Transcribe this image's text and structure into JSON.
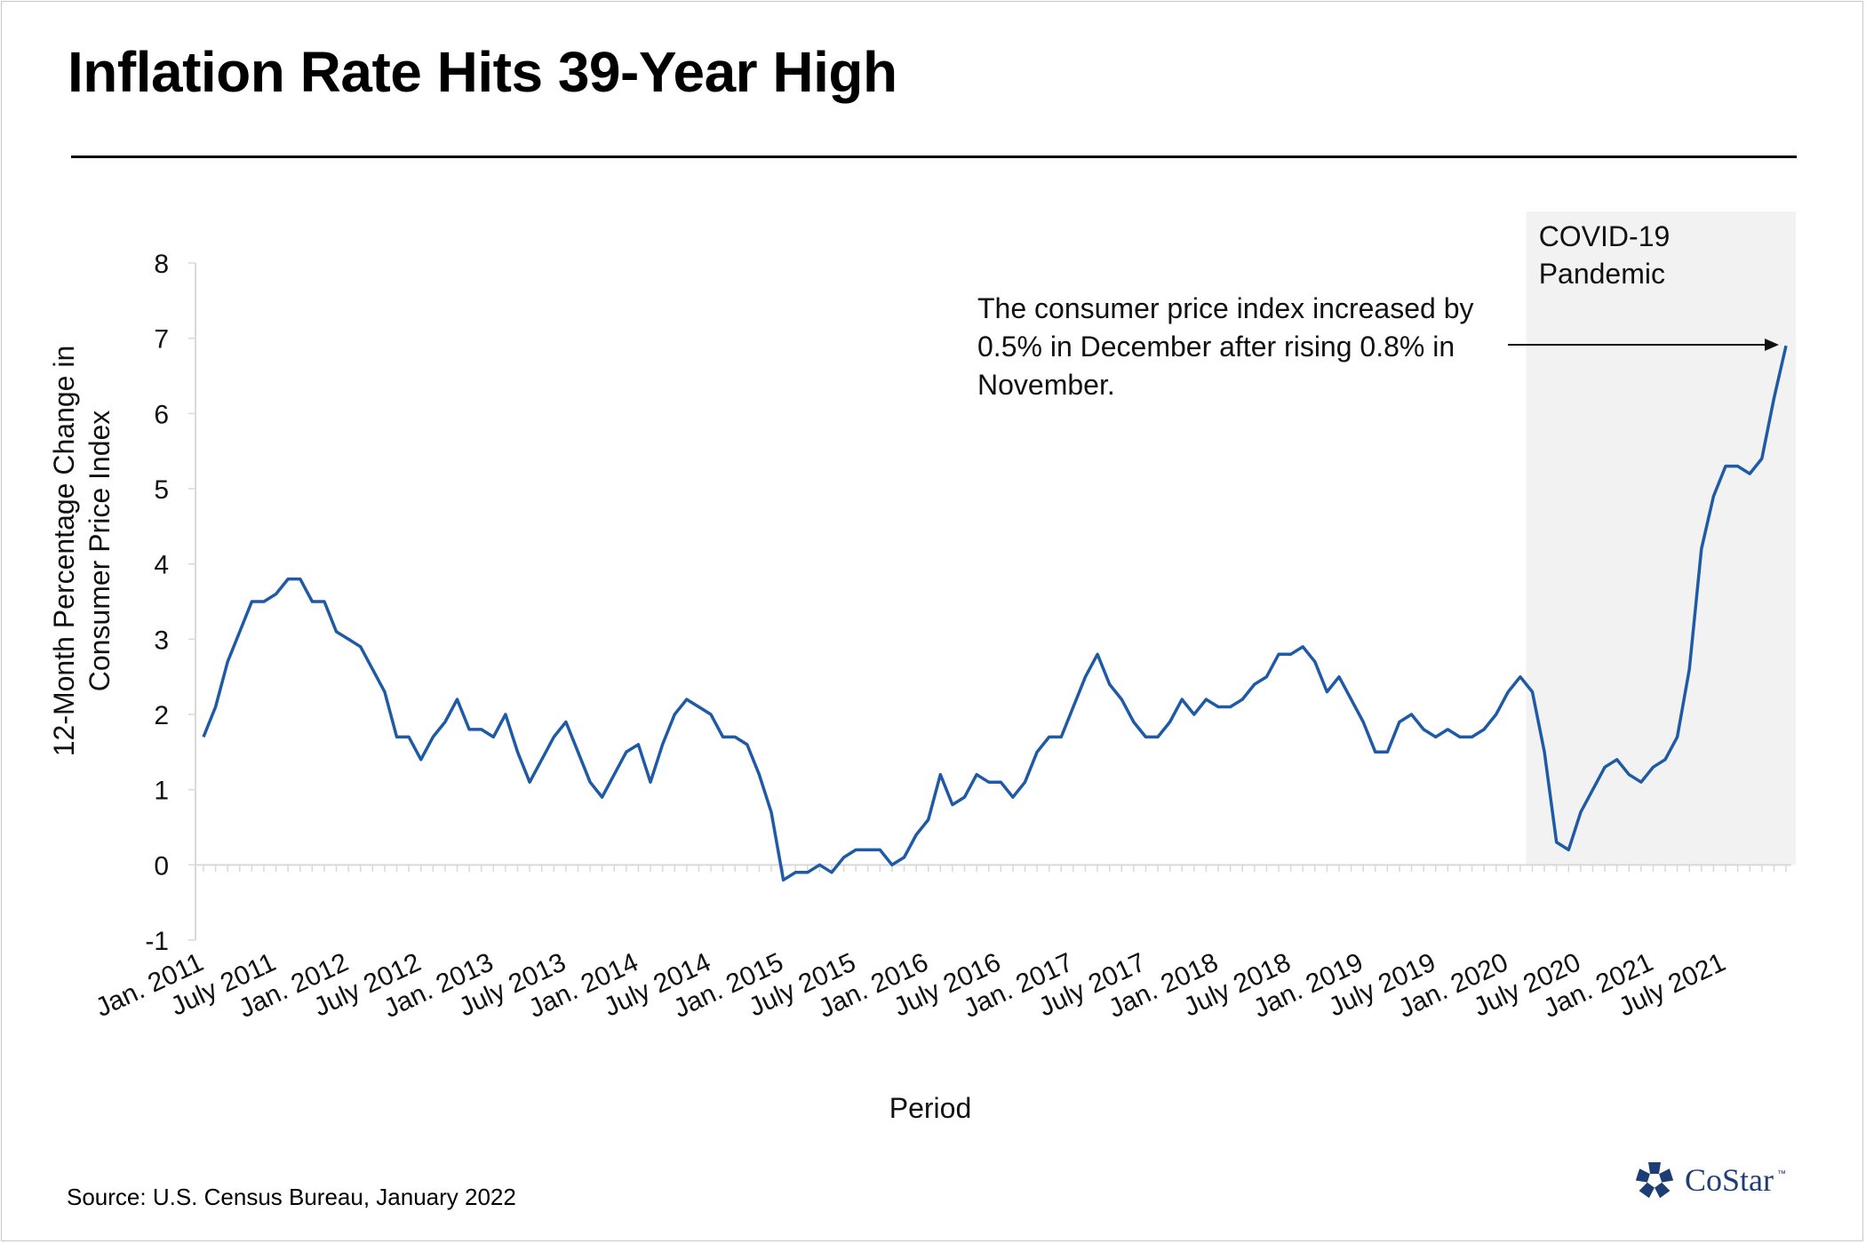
{
  "title": "Inflation Rate Hits 39-Year High",
  "source": "Source: U.S. Census Bureau, January 2022",
  "brand": {
    "name": "CoStar",
    "tm": "™",
    "color": "#1d3e75",
    "icon": "costar-star-icon"
  },
  "chart_data": {
    "type": "line",
    "xlabel": "Period",
    "ylabel": [
      "12-Month Percentage Change in",
      "Consumer Price Index"
    ],
    "ylim": [
      -1,
      8
    ],
    "yticks": [
      -1,
      0,
      1,
      2,
      3,
      4,
      5,
      6,
      7,
      8
    ],
    "grid": false,
    "line_color": "#1f5aa6",
    "categories": [
      "Jan. 2011",
      "Feb. 2011",
      "Mar. 2011",
      "Apr. 2011",
      "May 2011",
      "June 2011",
      "July 2011",
      "Aug. 2011",
      "Sep. 2011",
      "Oct. 2011",
      "Nov. 2011",
      "Dec. 2011",
      "Jan. 2012",
      "Feb. 2012",
      "Mar. 2012",
      "Apr. 2012",
      "May 2012",
      "June 2012",
      "July 2012",
      "Aug. 2012",
      "Sep. 2012",
      "Oct. 2012",
      "Nov. 2012",
      "Dec. 2012",
      "Jan. 2013",
      "Feb. 2013",
      "Mar. 2013",
      "Apr. 2013",
      "May 2013",
      "June 2013",
      "July 2013",
      "Aug. 2013",
      "Sep. 2013",
      "Oct. 2013",
      "Nov. 2013",
      "Dec. 2013",
      "Jan. 2014",
      "Feb. 2014",
      "Mar. 2014",
      "Apr. 2014",
      "May 2014",
      "June 2014",
      "July 2014",
      "Aug. 2014",
      "Sep. 2014",
      "Oct. 2014",
      "Nov. 2014",
      "Dec. 2014",
      "Jan. 2015",
      "Feb. 2015",
      "Mar. 2015",
      "Apr. 2015",
      "May 2015",
      "June 2015",
      "July 2015",
      "Aug. 2015",
      "Sep. 2015",
      "Oct. 2015",
      "Nov. 2015",
      "Dec. 2015",
      "Jan. 2016",
      "Feb. 2016",
      "Mar. 2016",
      "Apr. 2016",
      "May 2016",
      "June 2016",
      "July 2016",
      "Aug. 2016",
      "Sep. 2016",
      "Oct. 2016",
      "Nov. 2016",
      "Dec. 2016",
      "Jan. 2017",
      "Feb. 2017",
      "Mar. 2017",
      "Apr. 2017",
      "May 2017",
      "June 2017",
      "July 2017",
      "Aug. 2017",
      "Sep. 2017",
      "Oct. 2017",
      "Nov. 2017",
      "Dec. 2017",
      "Jan. 2018",
      "Feb. 2018",
      "Mar. 2018",
      "Apr. 2018",
      "May 2018",
      "June 2018",
      "July 2018",
      "Aug. 2018",
      "Sep. 2018",
      "Oct. 2018",
      "Nov. 2018",
      "Dec. 2018",
      "Jan. 2019",
      "Feb. 2019",
      "Mar. 2019",
      "Apr. 2019",
      "May 2019",
      "June 2019",
      "July 2019",
      "Aug. 2019",
      "Sep. 2019",
      "Oct. 2019",
      "Nov. 2019",
      "Dec. 2019",
      "Jan. 2020",
      "Feb. 2020",
      "Mar. 2020",
      "Apr. 2020",
      "May 2020",
      "June 2020",
      "July 2020",
      "Aug. 2020",
      "Sep. 2020",
      "Oct. 2020",
      "Nov. 2020",
      "Dec. 2020",
      "Jan. 2021",
      "Feb. 2021",
      "Mar. 2021",
      "Apr. 2021",
      "May 2021",
      "June 2021",
      "July 2021",
      "Aug. 2021",
      "Sep. 2021",
      "Oct. 2021",
      "Nov. 2021",
      "Dec. 2021"
    ],
    "tick_labels": [
      "Jan. 2011",
      "July 2011",
      "Jan. 2012",
      "July 2012",
      "Jan. 2013",
      "July 2013",
      "Jan. 2014",
      "July 2014",
      "Jan. 2015",
      "July 2015",
      "Jan. 2016",
      "July 2016",
      "Jan. 2017",
      "July 2017",
      "Jan. 2018",
      "July 2018",
      "Jan. 2019",
      "July 2019",
      "Jan. 2020",
      "July 2020",
      "Jan. 2021",
      "July 2021"
    ],
    "series": [
      {
        "values": [
          1.7,
          2.1,
          2.7,
          3.1,
          3.5,
          3.5,
          3.6,
          3.8,
          3.8,
          3.5,
          3.5,
          3.1,
          3.0,
          2.9,
          2.6,
          2.3,
          1.7,
          1.7,
          1.4,
          1.7,
          1.9,
          2.2,
          1.8,
          1.8,
          1.7,
          2.0,
          1.5,
          1.1,
          1.4,
          1.7,
          1.9,
          1.5,
          1.1,
          0.9,
          1.2,
          1.5,
          1.6,
          1.1,
          1.6,
          2.0,
          2.2,
          2.1,
          2.0,
          1.7,
          1.7,
          1.6,
          1.2,
          0.7,
          -0.2,
          -0.1,
          -0.1,
          0.0,
          -0.1,
          0.1,
          0.2,
          0.2,
          0.2,
          0.0,
          0.1,
          0.4,
          0.6,
          1.2,
          0.8,
          0.9,
          1.2,
          1.1,
          1.1,
          0.9,
          1.1,
          1.5,
          1.7,
          1.7,
          2.1,
          2.5,
          2.8,
          2.4,
          2.2,
          1.9,
          1.7,
          1.7,
          1.9,
          2.2,
          2.0,
          2.2,
          2.1,
          2.1,
          2.2,
          2.4,
          2.5,
          2.8,
          2.8,
          2.9,
          2.7,
          2.3,
          2.5,
          2.2,
          1.9,
          1.5,
          1.5,
          1.9,
          2.0,
          1.8,
          1.7,
          1.8,
          1.7,
          1.7,
          1.8,
          2.0,
          2.3,
          2.5,
          2.3,
          1.5,
          0.3,
          0.2,
          0.7,
          1.0,
          1.3,
          1.4,
          1.2,
          1.1,
          1.3,
          1.4,
          1.7,
          2.6,
          4.2,
          4.9,
          5.3,
          5.3,
          5.2,
          5.4,
          6.2,
          6.9
        ]
      }
    ],
    "shaded_region": {
      "label": [
        "COVID-19",
        "Pandemic"
      ],
      "start": "Mar. 2020",
      "end": "Dec. 2021",
      "color": "#f2f2f2"
    },
    "annotation": {
      "lines": [
        "The consumer price index increased by",
        "0.5% in December after rising 0.8% in",
        "November."
      ],
      "points_to": "Dec. 2021"
    }
  }
}
